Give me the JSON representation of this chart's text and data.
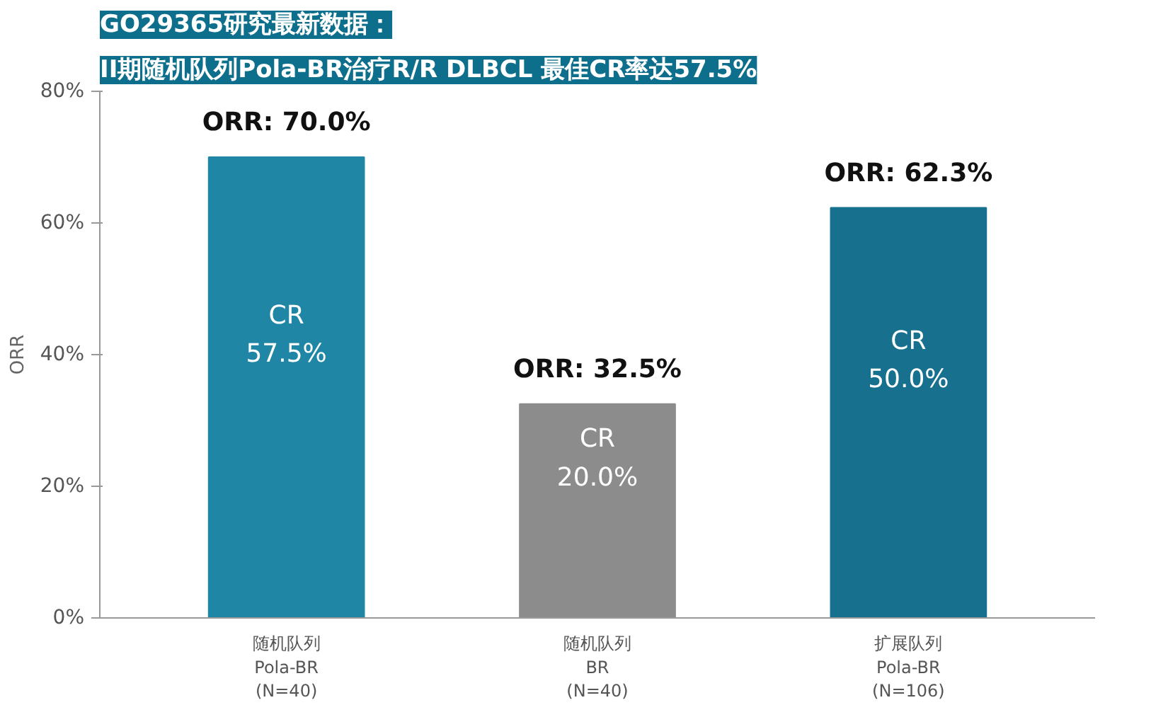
{
  "chart_data": {
    "type": "bar",
    "title": "GO29365研究最新数据：",
    "subtitle": "II期随机队列Pola-BR治疗R/R DLBCL 最佳CR率达57.5%",
    "ylabel": "ORR",
    "categories": [
      "随机队列\nPola-BR\n(N=40)",
      "随机队列\nBR\n(N=40)",
      "扩展队列\nPola-BR\n(N=106)"
    ],
    "values": [
      70.0,
      32.5,
      62.3
    ],
    "colors": [
      "#1f86a6",
      "#8c8c8c",
      "#17708e"
    ],
    "value_labels": [
      "ORR: 70.0%",
      "ORR: 32.5%",
      "ORR: 62.3%"
    ],
    "annotations": [
      "CR\n57.5%",
      "CR\n20.0%",
      "CR\n50.0%"
    ],
    "ylim": [
      0,
      80
    ],
    "yticks": [
      {
        "value": 0,
        "label": "0%"
      },
      {
        "value": 20,
        "label": "20%"
      },
      {
        "value": 40,
        "label": "40%"
      },
      {
        "value": 60,
        "label": "60%"
      },
      {
        "value": 80,
        "label": "80%"
      }
    ],
    "grid": false
  }
}
